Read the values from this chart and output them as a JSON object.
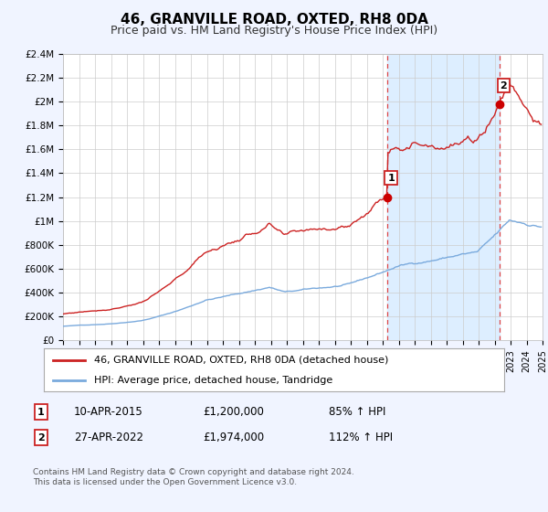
{
  "title": "46, GRANVILLE ROAD, OXTED, RH8 0DA",
  "subtitle": "Price paid vs. HM Land Registry's House Price Index (HPI)",
  "hpi_color": "#7aaadd",
  "price_color": "#cc2222",
  "marker_color": "#cc0000",
  "background_color": "#f0f4ff",
  "plot_background": "#ffffff",
  "grid_color": "#cccccc",
  "dashed_line_color": "#dd4444",
  "span_color": "#ddeeff",
  "ylim": [
    0,
    2400000
  ],
  "yticks": [
    0,
    200000,
    400000,
    600000,
    800000,
    1000000,
    1200000,
    1400000,
    1600000,
    1800000,
    2000000,
    2200000,
    2400000
  ],
  "ytick_labels": [
    "£0",
    "£200K",
    "£400K",
    "£600K",
    "£800K",
    "£1M",
    "£1.2M",
    "£1.4M",
    "£1.6M",
    "£1.8M",
    "£2M",
    "£2.2M",
    "£2.4M"
  ],
  "xmin": 1995,
  "xmax": 2025,
  "transaction1_x": 2015.27,
  "transaction1_y": 1200000,
  "transaction1_label": "1",
  "transaction1_date": "10-APR-2015",
  "transaction1_price": "£1,200,000",
  "transaction1_hpi": "85% ↑ HPI",
  "transaction2_x": 2022.32,
  "transaction2_y": 1974000,
  "transaction2_label": "2",
  "transaction2_date": "27-APR-2022",
  "transaction2_price": "£1,974,000",
  "transaction2_hpi": "112% ↑ HPI",
  "legend_label_price": "46, GRANVILLE ROAD, OXTED, RH8 0DA (detached house)",
  "legend_label_hpi": "HPI: Average price, detached house, Tandridge",
  "footer": "Contains HM Land Registry data © Crown copyright and database right 2024.\nThis data is licensed under the Open Government Licence v3.0."
}
